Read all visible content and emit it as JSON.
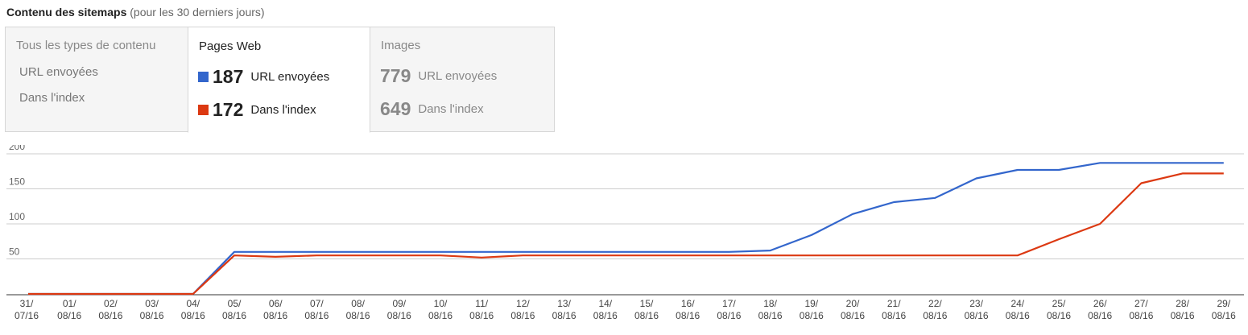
{
  "header": {
    "title": "Contenu des sitemaps",
    "subtitle": "(pour les 30 derniers jours)"
  },
  "tabs": [
    {
      "title": "Tous les types de contenu",
      "rows": [
        "URL envoyées",
        "Dans l'index"
      ]
    },
    {
      "title": "Pages Web",
      "submitted_value": "187",
      "submitted_label": "URL envoyées",
      "indexed_value": "172",
      "indexed_label": "Dans l'index",
      "submitted_color": "#3366cc",
      "indexed_color": "#dc3912"
    },
    {
      "title": "Images",
      "submitted_value": "779",
      "submitted_label": "URL envoyées",
      "indexed_value": "649",
      "indexed_label": "Dans l'index"
    }
  ],
  "chart_data": {
    "type": "line",
    "ylim": [
      0,
      200
    ],
    "yticks": [
      "50",
      "100",
      "150",
      "200"
    ],
    "categories": [
      "31/ 07/16",
      "01/ 08/16",
      "02/ 08/16",
      "03/ 08/16",
      "04/ 08/16",
      "05/ 08/16",
      "06/ 08/16",
      "07/ 08/16",
      "08/ 08/16",
      "09/ 08/16",
      "10/ 08/16",
      "11/ 08/16",
      "12/ 08/16",
      "13/ 08/16",
      "14/ 08/16",
      "15/ 08/16",
      "16/ 08/16",
      "17/ 08/16",
      "18/ 08/16",
      "19/ 08/16",
      "20/ 08/16",
      "21/ 08/16",
      "22/ 08/16",
      "23/ 08/16",
      "24/ 08/16",
      "25/ 08/16",
      "26/ 08/16",
      "27/ 08/16",
      "28/ 08/16",
      "29/ 08/16"
    ],
    "series": [
      {
        "color": "#3366cc",
        "values": [
          0,
          0,
          0,
          0,
          0,
          60,
          60,
          60,
          60,
          60,
          60,
          60,
          60,
          60,
          60,
          60,
          60,
          60,
          62,
          84,
          114,
          131,
          137,
          165,
          177,
          177,
          187,
          187,
          187,
          187
        ]
      },
      {
        "color": "#dc3912",
        "values": [
          0,
          0,
          0,
          0,
          0,
          55,
          53,
          55,
          55,
          55,
          55,
          52,
          55,
          55,
          55,
          55,
          55,
          55,
          55,
          55,
          55,
          55,
          55,
          55,
          55,
          78,
          100,
          158,
          172,
          172
        ]
      }
    ]
  }
}
